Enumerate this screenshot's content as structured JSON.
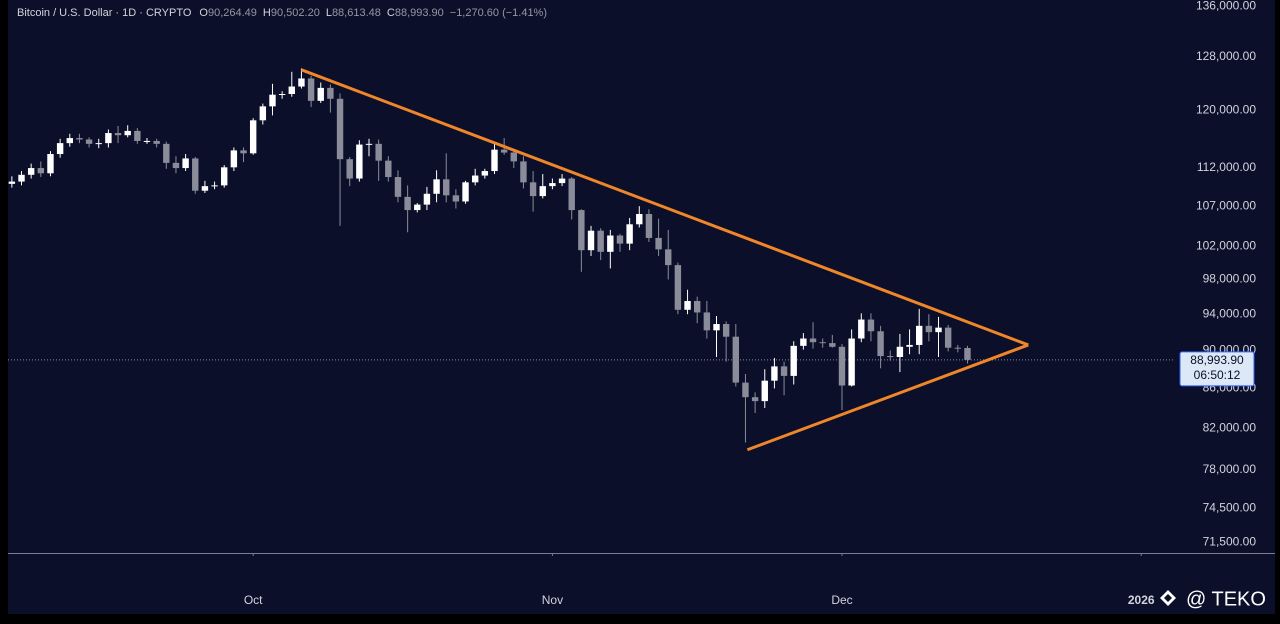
{
  "chart_data": {
    "type": "candlestick",
    "title": "Bitcoin / U.S. Dollar · 1D · CRYPTO",
    "ohlc_legend": [
      {
        "label": "O",
        "value": "90,264.49"
      },
      {
        "label": "H",
        "value": "90,502.20"
      },
      {
        "label": "L",
        "value": "88,613.48"
      },
      {
        "label": "C",
        "value": "88,993.90"
      }
    ],
    "change": "−1,270.60 (−1.41%)",
    "ohlc": {
      "open": [
        109900,
        110200,
        111100,
        112000,
        111300,
        113900,
        115400,
        116100,
        115900,
        115300,
        115400,
        116800,
        116500,
        117100,
        115700,
        115700,
        115300,
        112700,
        112000,
        113300,
        109000,
        109600,
        109700,
        112100,
        114400,
        114000,
        118600,
        120600,
        122300,
        122400,
        123500,
        124700,
        121400,
        123300,
        121700,
        113200,
        110600,
        115200,
        115300,
        113000,
        110800,
        108200,
        106500,
        107200,
        108600,
        110500,
        108400,
        107600,
        110100,
        111000,
        111600,
        114500,
        114100,
        112900,
        110100,
        108300,
        109600,
        110000,
        110600,
        106500,
        101500,
        103900,
        101300,
        103300,
        102300,
        104700,
        106000,
        103000,
        101600,
        99700,
        94500,
        95500,
        94200,
        92200,
        92900,
        91500,
        86600,
        85100,
        84700,
        86800,
        88300,
        87300,
        90500,
        91300,
        90900,
        90800,
        90400,
        86300,
        91300,
        93400,
        92100,
        89400,
        89300,
        90400,
        90600,
        92700,
        92000,
        92500,
        90300,
        90264.49
      ],
      "high": [
        110900,
        111600,
        112600,
        112900,
        114300,
        116000,
        116700,
        116700,
        116200,
        116000,
        117300,
        117800,
        117900,
        117500,
        116100,
        116000,
        115600,
        113600,
        113900,
        113500,
        110300,
        110200,
        112400,
        114800,
        114800,
        118900,
        121000,
        123900,
        122800,
        125700,
        126200,
        125100,
        124100,
        123800,
        122500,
        113500,
        115800,
        116000,
        115900,
        113600,
        111700,
        109700,
        107400,
        109500,
        111700,
        114000,
        109200,
        110300,
        111900,
        111900,
        115400,
        116100,
        114400,
        113600,
        111600,
        111200,
        110600,
        111200,
        110800,
        106600,
        104500,
        104200,
        104000,
        103500,
        105500,
        107000,
        106600,
        105400,
        104000,
        100000,
        96800,
        96000,
        95500,
        93800,
        93200,
        92900,
        87500,
        85600,
        88000,
        89200,
        88800,
        91000,
        91900,
        93100,
        91300,
        91700,
        90700,
        92300,
        94100,
        94100,
        92700,
        90000,
        91800,
        92300,
        94600,
        94000,
        93700,
        92800,
        90600,
        90502.2
      ],
      "low": [
        109400,
        109700,
        110600,
        110800,
        110900,
        113400,
        114900,
        115400,
        114800,
        114700,
        114800,
        115400,
        116200,
        115300,
        115300,
        114800,
        111900,
        111300,
        111600,
        108600,
        108700,
        109200,
        109400,
        111600,
        112800,
        113800,
        118000,
        119300,
        121700,
        122000,
        123200,
        120500,
        121100,
        119700,
        104500,
        109600,
        110200,
        113600,
        110300,
        110200,
        107500,
        103700,
        106200,
        106500,
        107500,
        107500,
        106700,
        107300,
        109700,
        110600,
        111200,
        113800,
        112000,
        109300,
        106300,
        108000,
        109200,
        109600,
        105300,
        98900,
        100800,
        100300,
        99300,
        101300,
        101500,
        104300,
        102500,
        100800,
        98000,
        94000,
        94000,
        93000,
        91300,
        89300,
        88800,
        86200,
        80600,
        83500,
        84000,
        86000,
        85300,
        86400,
        90100,
        90200,
        90300,
        90300,
        83800,
        86200,
        90900,
        91000,
        88100,
        88900,
        87700,
        89600,
        89600,
        91000,
        89300,
        89900,
        89800,
        88613.48
      ],
      "close": [
        110200,
        111100,
        112000,
        111300,
        113900,
        115400,
        116100,
        115900,
        115300,
        115400,
        116800,
        116500,
        117100,
        115700,
        115700,
        115300,
        112700,
        112000,
        113300,
        109000,
        109600,
        109700,
        112100,
        114400,
        114000,
        118600,
        120600,
        122300,
        122400,
        123500,
        124700,
        121400,
        123300,
        121700,
        113200,
        110600,
        115200,
        115300,
        113000,
        110800,
        108200,
        106500,
        107200,
        108600,
        110500,
        108400,
        107600,
        110100,
        111000,
        111600,
        114500,
        114100,
        112900,
        110100,
        108300,
        109600,
        110000,
        110600,
        106500,
        101500,
        103900,
        101300,
        103300,
        102300,
        104700,
        106000,
        103000,
        101600,
        99700,
        94500,
        95500,
        94200,
        92200,
        92900,
        91500,
        86600,
        85100,
        84700,
        86800,
        88300,
        87300,
        90500,
        91300,
        90900,
        90800,
        90400,
        86300,
        91300,
        93400,
        92100,
        89400,
        89300,
        90400,
        90600,
        92700,
        92000,
        92500,
        90300,
        90264.49,
        88993.9
      ]
    },
    "up_color": "#ffffff",
    "down_color": "#8a8d99",
    "log_scale": true,
    "grid": false,
    "ylim": [
      70600,
      137000
    ],
    "yticks": [
      {
        "value": 71500,
        "label": "71,500.00"
      },
      {
        "value": 74500,
        "label": "74,500.00"
      },
      {
        "value": 78000,
        "label": "78,000.00"
      },
      {
        "value": 82000,
        "label": "82,000.00"
      },
      {
        "value": 86000,
        "label": "86,000.00"
      },
      {
        "value": 90000,
        "label": "90,000.00"
      },
      {
        "value": 94000,
        "label": "94,000.00"
      },
      {
        "value": 98000,
        "label": "98,000.00"
      },
      {
        "value": 102000,
        "label": "102,000.00"
      },
      {
        "value": 107000,
        "label": "107,000.00"
      },
      {
        "value": 112000,
        "label": "112,000.00"
      },
      {
        "value": 120000,
        "label": "120,000.00"
      },
      {
        "value": 128000,
        "label": "128,000.00"
      },
      {
        "value": 136000,
        "label": "136,000.00"
      }
    ],
    "xlim": [
      -0.4,
      120.5
    ],
    "xticks": [
      {
        "value": 25,
        "label": "Oct"
      },
      {
        "value": 56,
        "label": "Nov"
      },
      {
        "value": 86,
        "label": "Dec"
      },
      {
        "value": 117,
        "label": "2026"
      }
    ],
    "trendlines": [
      {
        "color": "#f0862a",
        "x": [
          30,
          105.3
        ],
        "y": [
          126000,
          90600
        ]
      },
      {
        "color": "#f0862a",
        "x": [
          76.2,
          105.3
        ],
        "y": [
          79900,
          90600
        ]
      }
    ],
    "last_price": 88993.9,
    "last_price_label": "88,993.90",
    "countdown": "06:50:12",
    "watermark": "@ TEKO"
  }
}
